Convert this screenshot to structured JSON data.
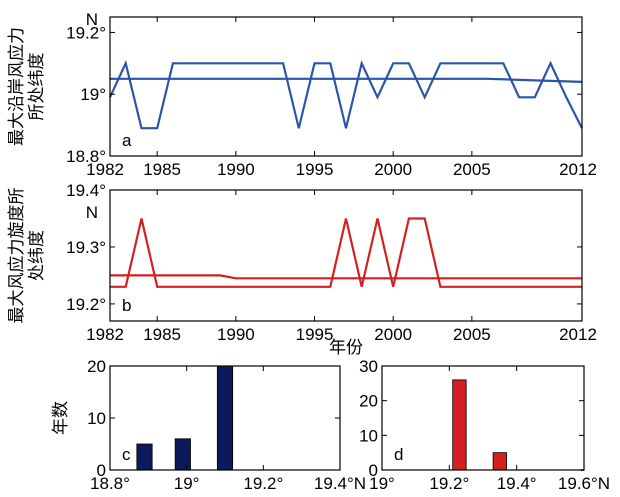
{
  "chart_data": [
    {
      "panel": "a",
      "type": "line",
      "ylabel": "最大沿岸风应力所处纬度",
      "y_unit": "N",
      "xlim": [
        1982,
        2012
      ],
      "ylim": [
        18.8,
        19.25
      ],
      "x_ticks": [
        1982,
        1985,
        1990,
        1995,
        2000,
        2005,
        2012
      ],
      "x_tick_labels": [
        "1982",
        "1985",
        "1990",
        "1995",
        "2000",
        "2005",
        "2012"
      ],
      "y_ticks": [
        18.8,
        19.0,
        19.2
      ],
      "y_tick_labels": [
        "18.8°",
        "19°",
        "19.2°"
      ],
      "color": "#2b55a8",
      "series": [
        {
          "x": [
            1982,
            1983,
            1984,
            1985,
            1986,
            1987,
            1988,
            1989,
            1990,
            1991,
            1992,
            1993,
            1994,
            1995,
            1996,
            1997,
            1998,
            1999,
            2000,
            2001,
            2002,
            2003,
            2004,
            2005,
            2006,
            2007,
            2008,
            2009,
            2010,
            2011,
            2012
          ],
          "values": [
            18.99,
            19.1,
            18.89,
            18.89,
            19.1,
            19.1,
            19.1,
            19.1,
            19.1,
            19.1,
            19.1,
            19.1,
            18.89,
            19.1,
            19.1,
            18.89,
            19.1,
            18.99,
            19.1,
            19.1,
            18.99,
            19.1,
            19.1,
            19.1,
            19.1,
            19.1,
            18.99,
            18.99,
            19.1,
            18.99,
            18.89
          ]
        },
        {
          "x": [
            1982,
            2006,
            2012
          ],
          "values": [
            19.05,
            19.05,
            19.04
          ]
        }
      ]
    },
    {
      "panel": "b",
      "type": "line",
      "ylabel": "最大风应力旋度所处纬度",
      "y_unit": "N",
      "xlabel": "年份",
      "xlim": [
        1982,
        2012
      ],
      "ylim": [
        19.17,
        19.4
      ],
      "x_ticks": [
        1982,
        1985,
        1990,
        1995,
        2000,
        2005,
        2012
      ],
      "x_tick_labels": [
        "1982",
        "1985",
        "1990",
        "1995",
        "2000",
        "2005",
        "2012"
      ],
      "y_ticks": [
        19.2,
        19.3,
        19.4
      ],
      "y_tick_labels": [
        "19.2°",
        "19.3°",
        "19.4°"
      ],
      "color": "#d42020",
      "series": [
        {
          "x": [
            1982,
            1983,
            1984,
            1985,
            1986,
            1987,
            1988,
            1989,
            1990,
            1991,
            1992,
            1993,
            1994,
            1995,
            1996,
            1997,
            1998,
            1999,
            2000,
            2001,
            2002,
            2003,
            2004,
            2005,
            2006,
            2007,
            2008,
            2009,
            2010,
            2011,
            2012
          ],
          "values": [
            19.23,
            19.23,
            19.35,
            19.23,
            19.23,
            19.23,
            19.23,
            19.23,
            19.23,
            19.23,
            19.23,
            19.23,
            19.23,
            19.23,
            19.23,
            19.35,
            19.23,
            19.35,
            19.23,
            19.35,
            19.35,
            19.23,
            19.23,
            19.23,
            19.23,
            19.23,
            19.23,
            19.23,
            19.23,
            19.23,
            19.23
          ]
        },
        {
          "x": [
            1982,
            1989,
            1990,
            2012
          ],
          "values": [
            19.25,
            19.25,
            19.245,
            19.245
          ]
        }
      ]
    },
    {
      "panel": "c",
      "type": "bar",
      "ylabel": "年数",
      "xlim": [
        18.8,
        19.4
      ],
      "ylim": [
        0,
        20
      ],
      "x_ticks": [
        18.8,
        19.0,
        19.2,
        19.4
      ],
      "x_tick_labels": [
        "18.8°",
        "19°",
        "19.2°",
        "19.4°N"
      ],
      "y_ticks": [
        0,
        10,
        20
      ],
      "y_tick_labels": [
        "0",
        "10",
        "20"
      ],
      "color": "#0c1a5c",
      "bar_width": 0.04,
      "x": [
        18.89,
        18.99,
        19.1
      ],
      "values": [
        5,
        6,
        20
      ]
    },
    {
      "panel": "d",
      "type": "bar",
      "xlim": [
        19.0,
        19.6
      ],
      "ylim": [
        0,
        30
      ],
      "x_ticks": [
        19.0,
        19.2,
        19.4,
        19.6
      ],
      "x_tick_labels": [
        "19°",
        "19.2°",
        "19.4°",
        "19.6°N"
      ],
      "y_ticks": [
        0,
        10,
        20,
        30
      ],
      "y_tick_labels": [
        "0",
        "10",
        "20",
        "30"
      ],
      "color": "#d42020",
      "bar_width": 0.04,
      "x": [
        19.23,
        19.35
      ],
      "values": [
        26,
        5
      ]
    }
  ]
}
